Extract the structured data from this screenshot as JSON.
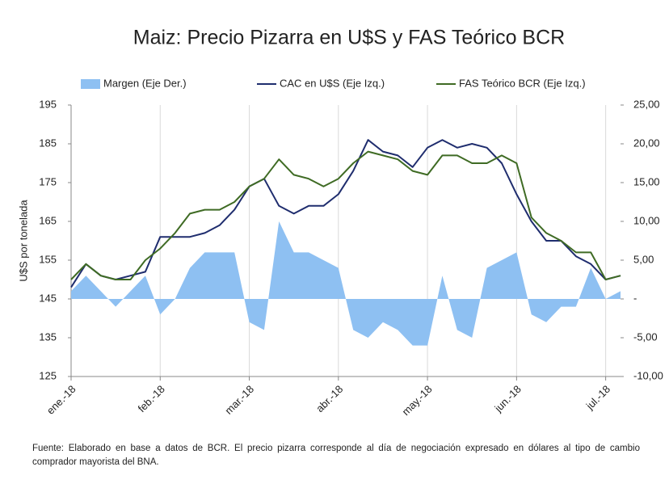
{
  "chart_data": {
    "type": "line",
    "title": "Maiz: Precio Pizarra en U$S y FAS Teórico BCR",
    "ylabel": "U$S por tonelada",
    "note": "Fuente: Elaborado en base a datos de BCR. El precio pizarra corresponde al día de negociación expresado en dólares al tipo de cambio comprador mayorista del BNA.",
    "categories": [
      "ene.-18",
      null,
      null,
      null,
      null,
      null,
      "feb.-18",
      null,
      null,
      null,
      null,
      null,
      "mar.-18",
      null,
      null,
      null,
      null,
      null,
      "abr.-18",
      null,
      null,
      null,
      null,
      null,
      "may.-18",
      null,
      null,
      null,
      null,
      null,
      "jun.-18",
      null,
      null,
      null,
      null,
      null,
      "jul.-18",
      null
    ],
    "series": [
      {
        "name": "Margen (Eje Der.)",
        "color": "#8ec0f2",
        "axis": "y2",
        "kind": "area",
        "values": [
          1,
          3,
          1,
          -1,
          1,
          3,
          -2,
          0,
          4,
          6,
          6,
          6,
          -3,
          -4,
          10,
          6,
          6,
          5,
          4,
          -4,
          -5,
          -3,
          -4,
          -6,
          -6,
          3,
          -4,
          -5,
          4,
          5,
          6,
          -2,
          -3,
          -1,
          -1,
          4,
          0,
          1
        ]
      },
      {
        "name": "CAC en U$S (Eje Izq.)",
        "color": "#1f2d6e",
        "kind": "line",
        "values": [
          148,
          154,
          151,
          150,
          151,
          152,
          161,
          161,
          161,
          162,
          164,
          168,
          174,
          176,
          169,
          167,
          169,
          169,
          172,
          178,
          186,
          183,
          182,
          179,
          184,
          186,
          184,
          185,
          184,
          180,
          172,
          165,
          160,
          160,
          156,
          154,
          150,
          151
        ]
      },
      {
        "name": "FAS Teórico BCR (Eje Izq.)",
        "color": "#3f6b24",
        "kind": "line",
        "values": [
          150,
          154,
          151,
          150,
          150,
          155,
          158,
          162,
          167,
          168,
          168,
          170,
          174,
          176,
          181,
          177,
          176,
          174,
          176,
          180,
          183,
          182,
          181,
          178,
          177,
          182,
          182,
          180,
          180,
          182,
          180,
          166,
          162,
          160,
          157,
          157,
          150,
          151
        ]
      }
    ],
    "ylim": [
      125,
      195
    ],
    "yticks": [
      125,
      135,
      145,
      155,
      165,
      175,
      185,
      195
    ],
    "y2lim": [
      -10,
      25
    ],
    "y2ticks": [
      {
        "value": -10,
        "label": "-10,00"
      },
      {
        "value": -5,
        "label": "-5,00"
      },
      {
        "value": 0,
        "label": "-"
      },
      {
        "value": 5,
        "label": "5,00"
      },
      {
        "value": 10,
        "label": "10,00"
      },
      {
        "value": 15,
        "label": "15,00"
      },
      {
        "value": 20,
        "label": "20,00"
      },
      {
        "value": 25,
        "label": "25,00"
      }
    ],
    "grid": "x"
  }
}
